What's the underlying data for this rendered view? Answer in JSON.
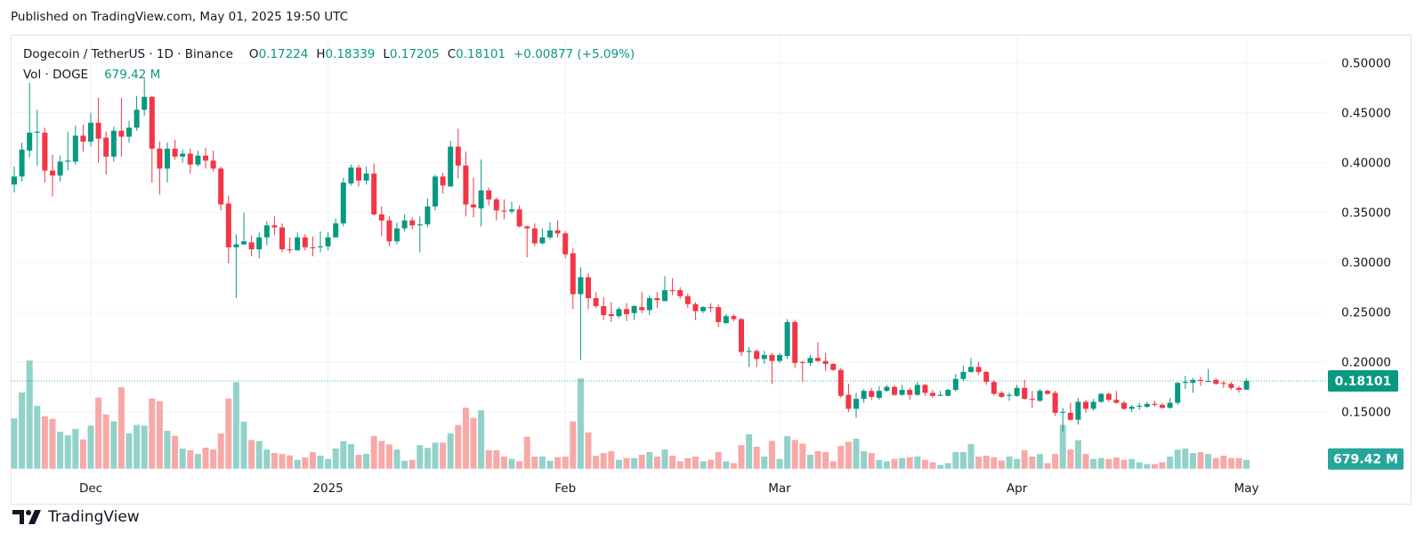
{
  "header": {
    "published": "Published on TradingView.com, May 01, 2025 19:50 UTC"
  },
  "legend": {
    "symbol": "Dogecoin / TetherUS · 1D · Binance",
    "open_label": "O",
    "open": "0.17224",
    "high_label": "H",
    "high": "0.18339",
    "low_label": "L",
    "low": "0.17205",
    "close_label": "C",
    "close": "0.18101",
    "change": "+0.00877 (+5.09%)",
    "vol_label": "Vol · DOGE",
    "vol": "679.42 M"
  },
  "axis": {
    "last_price_label": "0.18101",
    "last_volume_label": "679.42 M"
  },
  "footer": {
    "brand": "TradingView"
  },
  "colors": {
    "up": "#089981",
    "down": "#f23645",
    "up_volume": "#92d2c9",
    "down_volume": "#f7a9a8",
    "grid": "#f0f3fa",
    "price_badge": "#089981",
    "volume_badge": "#26a69a"
  },
  "chart_data": {
    "type": "candlestick",
    "title": "Dogecoin / TetherUS · 1D · Binance",
    "ylim": [
      0.12,
      0.52
    ],
    "yticks": [
      0.5,
      0.45,
      0.4,
      0.35,
      0.3,
      0.25,
      0.2,
      0.15
    ],
    "ytick_labels": [
      "0.50000",
      "0.45000",
      "0.40000",
      "0.35000",
      "0.30000",
      "0.25000",
      "0.20000",
      "0.15000"
    ],
    "xticks": [
      {
        "date": "2024-12-01",
        "label": "Dec"
      },
      {
        "date": "2025-01-01",
        "label": "2025"
      },
      {
        "date": "2025-02-01",
        "label": "Feb"
      },
      {
        "date": "2025-03-01",
        "label": "Mar"
      },
      {
        "date": "2025-04-01",
        "label": "Apr"
      },
      {
        "date": "2025-05-01",
        "label": "May"
      }
    ],
    "grid": true,
    "volume_unit": "M",
    "columns": [
      "date",
      "open",
      "high",
      "low",
      "close",
      "volume"
    ],
    "candles": [
      [
        "2024-11-21",
        0.378,
        0.396,
        0.37,
        0.386,
        3850
      ],
      [
        "2024-11-22",
        0.386,
        0.42,
        0.381,
        0.413,
        5830
      ],
      [
        "2024-11-23",
        0.412,
        0.48,
        0.405,
        0.43,
        8270
      ],
      [
        "2024-11-24",
        0.43,
        0.453,
        0.397,
        0.431,
        4800
      ],
      [
        "2024-11-25",
        0.43,
        0.435,
        0.38,
        0.392,
        4010
      ],
      [
        "2024-11-26",
        0.392,
        0.408,
        0.366,
        0.387,
        3810
      ],
      [
        "2024-11-27",
        0.387,
        0.407,
        0.381,
        0.401,
        2830
      ],
      [
        "2024-11-28",
        0.401,
        0.431,
        0.392,
        0.402,
        2560
      ],
      [
        "2024-11-29",
        0.401,
        0.437,
        0.398,
        0.427,
        3040
      ],
      [
        "2024-11-30",
        0.427,
        0.438,
        0.411,
        0.421,
        2240
      ],
      [
        "2024-12-01",
        0.421,
        0.45,
        0.416,
        0.44,
        3290
      ],
      [
        "2024-12-02",
        0.44,
        0.465,
        0.4,
        0.424,
        5440
      ],
      [
        "2024-12-03",
        0.425,
        0.431,
        0.388,
        0.406,
        4150
      ],
      [
        "2024-12-04",
        0.406,
        0.436,
        0.401,
        0.432,
        3630
      ],
      [
        "2024-12-05",
        0.432,
        0.465,
        0.406,
        0.426,
        6230
      ],
      [
        "2024-12-06",
        0.426,
        0.442,
        0.42,
        0.435,
        2700
      ],
      [
        "2024-12-07",
        0.435,
        0.467,
        0.432,
        0.453,
        3350
      ],
      [
        "2024-12-08",
        0.453,
        0.484,
        0.447,
        0.466,
        3290
      ],
      [
        "2024-12-09",
        0.466,
        0.467,
        0.38,
        0.414,
        5370
      ],
      [
        "2024-12-10",
        0.414,
        0.421,
        0.368,
        0.394,
        5150
      ],
      [
        "2024-12-11",
        0.394,
        0.42,
        0.38,
        0.414,
        2900
      ],
      [
        "2024-12-12",
        0.414,
        0.423,
        0.403,
        0.406,
        2520
      ],
      [
        "2024-12-13",
        0.406,
        0.413,
        0.4,
        0.409,
        1540
      ],
      [
        "2024-12-14",
        0.409,
        0.414,
        0.389,
        0.398,
        1410
      ],
      [
        "2024-12-15",
        0.398,
        0.412,
        0.396,
        0.407,
        1130
      ],
      [
        "2024-12-16",
        0.407,
        0.415,
        0.394,
        0.402,
        1610
      ],
      [
        "2024-12-17",
        0.402,
        0.412,
        0.391,
        0.394,
        1470
      ],
      [
        "2024-12-18",
        0.394,
        0.396,
        0.352,
        0.358,
        2700
      ],
      [
        "2024-12-19",
        0.359,
        0.367,
        0.299,
        0.315,
        5370
      ],
      [
        "2024-12-20",
        0.315,
        0.328,
        0.264,
        0.318,
        6620
      ],
      [
        "2024-12-21",
        0.318,
        0.35,
        0.317,
        0.321,
        3600
      ],
      [
        "2024-12-22",
        0.32,
        0.327,
        0.306,
        0.313,
        2200
      ],
      [
        "2024-12-23",
        0.313,
        0.33,
        0.304,
        0.325,
        2110
      ],
      [
        "2024-12-24",
        0.325,
        0.341,
        0.317,
        0.337,
        1470
      ],
      [
        "2024-12-25",
        0.337,
        0.346,
        0.327,
        0.335,
        1200
      ],
      [
        "2024-12-26",
        0.335,
        0.339,
        0.31,
        0.313,
        1130
      ],
      [
        "2024-12-27",
        0.313,
        0.325,
        0.309,
        0.312,
        1020
      ],
      [
        "2024-12-28",
        0.312,
        0.33,
        0.312,
        0.325,
        680
      ],
      [
        "2024-12-29",
        0.325,
        0.328,
        0.312,
        0.315,
        860
      ],
      [
        "2024-12-30",
        0.315,
        0.326,
        0.306,
        0.314,
        1270
      ],
      [
        "2024-12-31",
        0.315,
        0.331,
        0.31,
        0.316,
        1000
      ],
      [
        "2025-01-01",
        0.316,
        0.33,
        0.312,
        0.325,
        750
      ],
      [
        "2025-01-02",
        0.325,
        0.344,
        0.325,
        0.339,
        1540
      ],
      [
        "2025-01-03",
        0.339,
        0.385,
        0.336,
        0.38,
        2110
      ],
      [
        "2025-01-04",
        0.379,
        0.398,
        0.377,
        0.395,
        1880
      ],
      [
        "2025-01-05",
        0.395,
        0.398,
        0.376,
        0.382,
        1070
      ],
      [
        "2025-01-06",
        0.382,
        0.396,
        0.378,
        0.389,
        1130
      ],
      [
        "2025-01-07",
        0.389,
        0.399,
        0.347,
        0.348,
        2490
      ],
      [
        "2025-01-08",
        0.348,
        0.356,
        0.326,
        0.342,
        2130
      ],
      [
        "2025-01-09",
        0.342,
        0.346,
        0.316,
        0.321,
        1860
      ],
      [
        "2025-01-10",
        0.321,
        0.34,
        0.318,
        0.334,
        1470
      ],
      [
        "2025-01-11",
        0.334,
        0.348,
        0.331,
        0.342,
        610
      ],
      [
        "2025-01-12",
        0.342,
        0.345,
        0.333,
        0.337,
        680
      ],
      [
        "2025-01-13",
        0.337,
        0.346,
        0.31,
        0.338,
        1810
      ],
      [
        "2025-01-14",
        0.338,
        0.364,
        0.335,
        0.356,
        1590
      ],
      [
        "2025-01-15",
        0.356,
        0.388,
        0.352,
        0.386,
        1990
      ],
      [
        "2025-01-16",
        0.386,
        0.39,
        0.369,
        0.377,
        1990
      ],
      [
        "2025-01-17",
        0.376,
        0.422,
        0.376,
        0.416,
        2700
      ],
      [
        "2025-01-18",
        0.416,
        0.434,
        0.384,
        0.397,
        3350
      ],
      [
        "2025-01-19",
        0.397,
        0.411,
        0.346,
        0.358,
        4670
      ],
      [
        "2025-01-20",
        0.358,
        0.385,
        0.345,
        0.355,
        3880
      ],
      [
        "2025-01-21",
        0.354,
        0.403,
        0.336,
        0.372,
        4470
      ],
      [
        "2025-01-22",
        0.372,
        0.375,
        0.357,
        0.363,
        1410
      ],
      [
        "2025-01-23",
        0.363,
        0.365,
        0.342,
        0.352,
        1410
      ],
      [
        "2025-01-24",
        0.352,
        0.363,
        0.343,
        0.351,
        930
      ],
      [
        "2025-01-25",
        0.351,
        0.361,
        0.349,
        0.353,
        750
      ],
      [
        "2025-01-26",
        0.353,
        0.357,
        0.335,
        0.336,
        570
      ],
      [
        "2025-01-27",
        0.336,
        0.337,
        0.305,
        0.334,
        2450
      ],
      [
        "2025-01-28",
        0.334,
        0.339,
        0.316,
        0.319,
        930
      ],
      [
        "2025-01-29",
        0.319,
        0.334,
        0.318,
        0.325,
        930
      ],
      [
        "2025-01-30",
        0.325,
        0.34,
        0.323,
        0.332,
        610
      ],
      [
        "2025-01-31",
        0.332,
        0.342,
        0.325,
        0.329,
        880
      ],
      [
        "2025-02-01",
        0.329,
        0.331,
        0.304,
        0.308,
        930
      ],
      [
        "2025-02-02",
        0.309,
        0.314,
        0.253,
        0.268,
        3620
      ],
      [
        "2025-02-03",
        0.268,
        0.295,
        0.202,
        0.285,
        6910
      ],
      [
        "2025-02-04",
        0.285,
        0.289,
        0.253,
        0.264,
        2770
      ],
      [
        "2025-02-05",
        0.264,
        0.27,
        0.254,
        0.256,
        1000
      ],
      [
        "2025-02-06",
        0.256,
        0.265,
        0.242,
        0.247,
        1200
      ],
      [
        "2025-02-07",
        0.248,
        0.26,
        0.24,
        0.246,
        1340
      ],
      [
        "2025-02-08",
        0.246,
        0.255,
        0.244,
        0.253,
        680
      ],
      [
        "2025-02-09",
        0.253,
        0.259,
        0.241,
        0.248,
        820
      ],
      [
        "2025-02-10",
        0.249,
        0.257,
        0.242,
        0.256,
        820
      ],
      [
        "2025-02-11",
        0.255,
        0.27,
        0.249,
        0.252,
        1070
      ],
      [
        "2025-02-12",
        0.252,
        0.267,
        0.247,
        0.264,
        1270
      ],
      [
        "2025-02-13",
        0.264,
        0.27,
        0.254,
        0.262,
        930
      ],
      [
        "2025-02-14",
        0.261,
        0.286,
        0.261,
        0.272,
        1470
      ],
      [
        "2025-02-15",
        0.272,
        0.284,
        0.267,
        0.271,
        1000
      ],
      [
        "2025-02-16",
        0.272,
        0.275,
        0.263,
        0.266,
        570
      ],
      [
        "2025-02-17",
        0.266,
        0.269,
        0.254,
        0.258,
        820
      ],
      [
        "2025-02-18",
        0.258,
        0.26,
        0.242,
        0.251,
        930
      ],
      [
        "2025-02-19",
        0.251,
        0.256,
        0.249,
        0.255,
        570
      ],
      [
        "2025-02-20",
        0.255,
        0.259,
        0.25,
        0.254,
        680
      ],
      [
        "2025-02-21",
        0.255,
        0.258,
        0.235,
        0.24,
        1270
      ],
      [
        "2025-02-22",
        0.239,
        0.248,
        0.238,
        0.246,
        570
      ],
      [
        "2025-02-23",
        0.246,
        0.248,
        0.241,
        0.243,
        430
      ],
      [
        "2025-02-24",
        0.243,
        0.244,
        0.206,
        0.21,
        1810
      ],
      [
        "2025-02-25",
        0.21,
        0.215,
        0.195,
        0.211,
        2630
      ],
      [
        "2025-02-26",
        0.211,
        0.213,
        0.195,
        0.203,
        1680
      ],
      [
        "2025-02-27",
        0.203,
        0.211,
        0.198,
        0.207,
        930
      ],
      [
        "2025-02-28",
        0.207,
        0.209,
        0.178,
        0.201,
        2130
      ],
      [
        "2025-03-01",
        0.201,
        0.209,
        0.199,
        0.207,
        750
      ],
      [
        "2025-03-02",
        0.206,
        0.243,
        0.203,
        0.24,
        2490
      ],
      [
        "2025-03-03",
        0.24,
        0.242,
        0.194,
        0.199,
        2200
      ],
      [
        "2025-03-04",
        0.2,
        0.201,
        0.18,
        0.199,
        1920
      ],
      [
        "2025-03-05",
        0.199,
        0.207,
        0.196,
        0.204,
        1070
      ],
      [
        "2025-03-06",
        0.204,
        0.22,
        0.2,
        0.201,
        1340
      ],
      [
        "2025-03-07",
        0.201,
        0.209,
        0.191,
        0.198,
        1270
      ],
      [
        "2025-03-08",
        0.198,
        0.199,
        0.191,
        0.192,
        570
      ],
      [
        "2025-03-09",
        0.192,
        0.194,
        0.164,
        0.166,
        1750
      ],
      [
        "2025-03-10",
        0.167,
        0.178,
        0.15,
        0.153,
        2060
      ],
      [
        "2025-03-11",
        0.153,
        0.169,
        0.144,
        0.163,
        2290
      ],
      [
        "2025-03-12",
        0.163,
        0.173,
        0.159,
        0.171,
        1340
      ],
      [
        "2025-03-13",
        0.171,
        0.174,
        0.162,
        0.165,
        1200
      ],
      [
        "2025-03-14",
        0.164,
        0.176,
        0.162,
        0.171,
        680
      ],
      [
        "2025-03-15",
        0.171,
        0.177,
        0.17,
        0.175,
        570
      ],
      [
        "2025-03-16",
        0.175,
        0.177,
        0.166,
        0.167,
        750
      ],
      [
        "2025-03-17",
        0.167,
        0.177,
        0.166,
        0.172,
        820
      ],
      [
        "2025-03-18",
        0.172,
        0.174,
        0.162,
        0.167,
        880
      ],
      [
        "2025-03-19",
        0.167,
        0.18,
        0.166,
        0.177,
        930
      ],
      [
        "2025-03-20",
        0.177,
        0.178,
        0.166,
        0.169,
        680
      ],
      [
        "2025-03-21",
        0.169,
        0.172,
        0.164,
        0.166,
        500
      ],
      [
        "2025-03-22",
        0.166,
        0.171,
        0.166,
        0.167,
        290
      ],
      [
        "2025-03-23",
        0.166,
        0.173,
        0.166,
        0.172,
        430
      ],
      [
        "2025-03-24",
        0.172,
        0.188,
        0.17,
        0.183,
        1270
      ],
      [
        "2025-03-25",
        0.183,
        0.196,
        0.181,
        0.19,
        1270
      ],
      [
        "2025-03-26",
        0.19,
        0.204,
        0.189,
        0.195,
        1880
      ],
      [
        "2025-03-27",
        0.195,
        0.2,
        0.187,
        0.19,
        930
      ],
      [
        "2025-03-28",
        0.19,
        0.191,
        0.177,
        0.18,
        1000
      ],
      [
        "2025-03-29",
        0.18,
        0.182,
        0.166,
        0.168,
        880
      ],
      [
        "2025-03-30",
        0.169,
        0.171,
        0.164,
        0.165,
        630
      ],
      [
        "2025-03-31",
        0.166,
        0.169,
        0.161,
        0.167,
        930
      ],
      [
        "2025-04-01",
        0.166,
        0.177,
        0.165,
        0.174,
        750
      ],
      [
        "2025-04-02",
        0.174,
        0.182,
        0.162,
        0.163,
        1410
      ],
      [
        "2025-04-03",
        0.163,
        0.171,
        0.154,
        0.162,
        930
      ],
      [
        "2025-04-04",
        0.161,
        0.173,
        0.16,
        0.171,
        1130
      ],
      [
        "2025-04-05",
        0.171,
        0.172,
        0.167,
        0.168,
        430
      ],
      [
        "2025-04-06",
        0.169,
        0.171,
        0.146,
        0.149,
        1130
      ],
      [
        "2025-04-07",
        0.149,
        0.154,
        0.13,
        0.15,
        3350
      ],
      [
        "2025-04-08",
        0.149,
        0.159,
        0.141,
        0.142,
        1470
      ],
      [
        "2025-04-09",
        0.142,
        0.164,
        0.137,
        0.16,
        2180
      ],
      [
        "2025-04-10",
        0.16,
        0.162,
        0.149,
        0.153,
        1130
      ],
      [
        "2025-04-11",
        0.153,
        0.163,
        0.151,
        0.16,
        750
      ],
      [
        "2025-04-12",
        0.16,
        0.169,
        0.159,
        0.168,
        820
      ],
      [
        "2025-04-13",
        0.168,
        0.169,
        0.16,
        0.162,
        750
      ],
      [
        "2025-04-14",
        0.162,
        0.171,
        0.158,
        0.159,
        860
      ],
      [
        "2025-04-15",
        0.159,
        0.161,
        0.152,
        0.153,
        680
      ],
      [
        "2025-04-16",
        0.153,
        0.157,
        0.15,
        0.155,
        750
      ],
      [
        "2025-04-17",
        0.155,
        0.159,
        0.152,
        0.156,
        500
      ],
      [
        "2025-04-18",
        0.155,
        0.16,
        0.154,
        0.158,
        360
      ],
      [
        "2025-04-19",
        0.158,
        0.161,
        0.155,
        0.157,
        360
      ],
      [
        "2025-04-20",
        0.157,
        0.159,
        0.153,
        0.154,
        500
      ],
      [
        "2025-04-21",
        0.154,
        0.164,
        0.153,
        0.159,
        930
      ],
      [
        "2025-04-22",
        0.159,
        0.18,
        0.157,
        0.179,
        1450
      ],
      [
        "2025-04-23",
        0.179,
        0.186,
        0.173,
        0.18,
        1540
      ],
      [
        "2025-04-24",
        0.179,
        0.184,
        0.169,
        0.182,
        1200
      ],
      [
        "2025-04-25",
        0.182,
        0.185,
        0.176,
        0.181,
        1270
      ],
      [
        "2025-04-26",
        0.18,
        0.193,
        0.18,
        0.181,
        1130
      ],
      [
        "2025-04-27",
        0.182,
        0.184,
        0.177,
        0.178,
        820
      ],
      [
        "2025-04-28",
        0.179,
        0.181,
        0.174,
        0.178,
        1000
      ],
      [
        "2025-04-29",
        0.178,
        0.18,
        0.172,
        0.174,
        820
      ],
      [
        "2025-04-30",
        0.174,
        0.176,
        0.169,
        0.172,
        820
      ],
      [
        "2025-05-01",
        0.17224,
        0.18339,
        0.17205,
        0.18101,
        679.42
      ]
    ]
  }
}
